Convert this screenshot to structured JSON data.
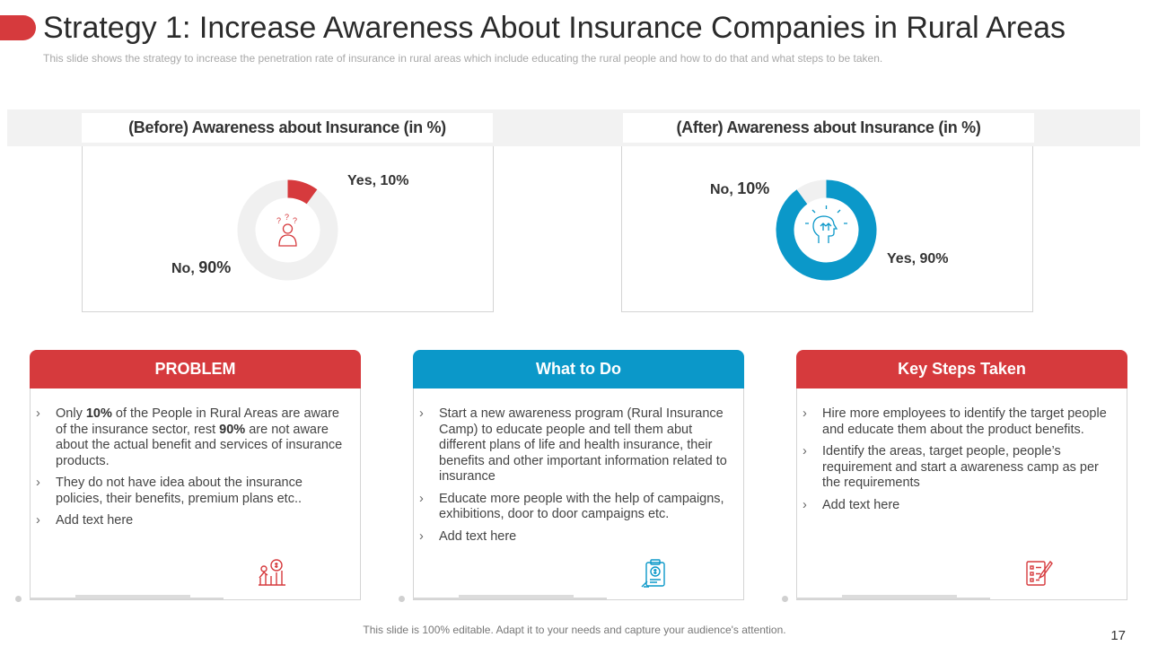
{
  "title": "Strategy 1: Increase Awareness About Insurance Companies in Rural Areas",
  "subtitle": "This slide shows the strategy to increase the penetration rate of insurance in rural areas which include educating the rural people and how to do that and what steps to be taken.",
  "chart_data": [
    {
      "type": "pie",
      "title": "(Before) Awareness about Insurance (in %)",
      "categories": [
        "Yes",
        "No"
      ],
      "values": [
        10,
        90
      ],
      "colors": [
        "#d63a3d",
        "#f0f0f0"
      ],
      "labels": {
        "yes": "Yes, 10%",
        "no_prefix": "No,",
        "no_value": "90%"
      },
      "center_icon": "confused-person-icon"
    },
    {
      "type": "pie",
      "title": "(After) Awareness about Insurance (in %)",
      "categories": [
        "Yes",
        "No"
      ],
      "values": [
        90,
        10
      ],
      "colors": [
        "#0b98c9",
        "#f0f0f0"
      ],
      "labels": {
        "yes": "Yes, 90%",
        "no_prefix": "No,",
        "no_value": "10%"
      },
      "center_icon": "idea-head-icon"
    }
  ],
  "cards": [
    {
      "header": "PROBLEM",
      "color": "#d63a3d",
      "icon": "money-growth-icon",
      "items": [
        {
          "parts": [
            "Only ",
            "10%",
            " of the People in Rural Areas are aware of the insurance sector, rest ",
            "90%",
            " are not aware about the actual benefit and services of insurance products."
          ]
        },
        {
          "text": "They do not have idea about the insurance policies, their benefits, premium plans etc.."
        },
        {
          "text": "Add text here"
        }
      ]
    },
    {
      "header": "What to Do",
      "color": "#0b98c9",
      "icon": "clipboard-money-icon",
      "items": [
        {
          "text": "Start a new awareness program (Rural Insurance Camp) to educate people and tell them abut different plans of life and health insurance, their benefits and other important information related to insurance"
        },
        {
          "text": "Educate more people with the help of campaigns, exhibitions, door to door campaigns etc."
        },
        {
          "text": "Add text here"
        }
      ]
    },
    {
      "header": "Key Steps Taken",
      "color": "#d63a3d",
      "icon": "checklist-pen-icon",
      "items": [
        {
          "text": "Hire more employees to identify the target people and educate them about the product benefits."
        },
        {
          "text": "Identify the areas, target people, people’s requirement and start a awareness camp as per the requirements"
        },
        {
          "text": "Add text here"
        }
      ]
    }
  ],
  "footer": "This slide is 100% editable. Adapt it to your needs and capture your audience's attention.",
  "page_number": "17"
}
